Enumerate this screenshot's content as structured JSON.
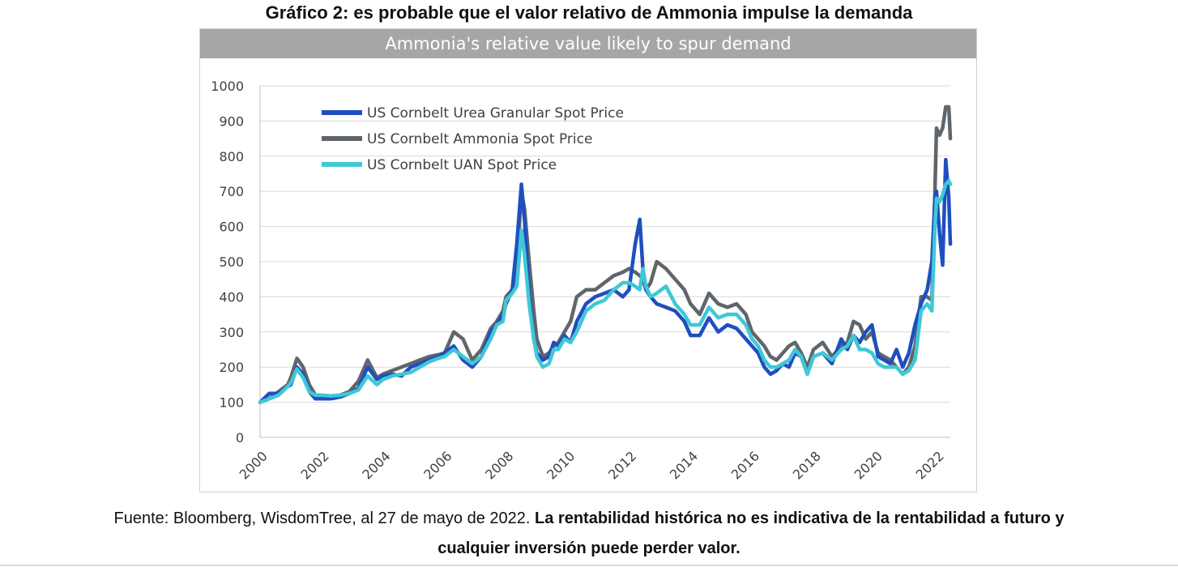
{
  "page_title": "Gráfico 2: es probable que el valor relativo de Ammonia impulse la demanda",
  "caption": {
    "source": "Fuente: Bloomberg, WisdomTree, al 27 de mayo de 2022.",
    "disclaimer_line1": "La rentabilidad histórica no es indicativa de la rentabilidad a futuro y",
    "disclaimer_line2": "cualquier inversión puede perder valor."
  },
  "colors": {
    "urea": "#1f4fbf",
    "ammonia": "#5f666b",
    "uan": "#3fc8d6",
    "header_bg": "#a6a6a6",
    "grid": "#d9d9d9"
  },
  "chart_data": {
    "type": "line",
    "title": "Ammonia's relative value likely to spur demand",
    "xlabel": "",
    "ylabel": "",
    "ylim": [
      0,
      1000
    ],
    "xlim": [
      2000,
      2022.45
    ],
    "yticks": [
      0,
      100,
      200,
      300,
      400,
      500,
      600,
      700,
      800,
      900,
      1000
    ],
    "xticks": [
      "2000",
      "2002",
      "2004",
      "2006",
      "2008",
      "2010",
      "2012",
      "2014",
      "2016",
      "2018",
      "2020",
      "2022"
    ],
    "legend_position": "top-left",
    "series": [
      {
        "name": "US Cornbelt Urea Granular Spot Price",
        "color": "#1f4fbf",
        "x": [
          2000,
          2000.3,
          2000.6,
          2000.9,
          2001.0,
          2001.2,
          2001.4,
          2001.6,
          2001.8,
          2002.0,
          2002.3,
          2002.6,
          2002.9,
          2003.2,
          2003.5,
          2003.8,
          2004.0,
          2004.3,
          2004.6,
          2004.9,
          2005.2,
          2005.5,
          2005.8,
          2006.0,
          2006.3,
          2006.6,
          2006.9,
          2007.2,
          2007.5,
          2007.7,
          2007.9,
          2008.0,
          2008.2,
          2008.35,
          2008.5,
          2008.6,
          2008.75,
          2008.9,
          2009.0,
          2009.2,
          2009.4,
          2009.55,
          2009.7,
          2009.9,
          2010.1,
          2010.3,
          2010.6,
          2010.9,
          2011.2,
          2011.5,
          2011.8,
          2012.0,
          2012.2,
          2012.35,
          2012.45,
          2012.55,
          2012.7,
          2012.9,
          2013.2,
          2013.5,
          2013.8,
          2014.0,
          2014.3,
          2014.6,
          2014.9,
          2015.2,
          2015.5,
          2015.8,
          2016.0,
          2016.2,
          2016.4,
          2016.6,
          2016.8,
          2017.0,
          2017.2,
          2017.4,
          2017.6,
          2017.8,
          2018.0,
          2018.3,
          2018.6,
          2018.9,
          2019.1,
          2019.3,
          2019.5,
          2019.7,
          2019.9,
          2020.1,
          2020.3,
          2020.5,
          2020.7,
          2020.9,
          2021.1,
          2021.3,
          2021.5,
          2021.7,
          2021.85,
          2021.95,
          2022.0,
          2022.1,
          2022.2,
          2022.3,
          2022.4,
          2022.45
        ],
        "values": [
          100,
          125,
          125,
          145,
          150,
          200,
          180,
          130,
          110,
          110,
          110,
          115,
          125,
          140,
          200,
          165,
          175,
          180,
          175,
          200,
          210,
          220,
          230,
          240,
          260,
          220,
          200,
          230,
          300,
          320,
          350,
          380,
          420,
          550,
          720,
          620,
          400,
          280,
          240,
          220,
          230,
          270,
          260,
          290,
          270,
          330,
          380,
          400,
          410,
          420,
          400,
          420,
          550,
          620,
          480,
          420,
          400,
          380,
          370,
          360,
          330,
          290,
          290,
          340,
          300,
          320,
          310,
          280,
          260,
          240,
          200,
          180,
          190,
          210,
          200,
          240,
          230,
          180,
          230,
          240,
          210,
          280,
          250,
          290,
          270,
          300,
          320,
          230,
          220,
          210,
          250,
          200,
          240,
          320,
          380,
          420,
          500,
          680,
          700,
          580,
          490,
          790,
          680,
          550
        ]
      },
      {
        "name": "US Cornbelt Ammonia Spot Price",
        "color": "#5f666b",
        "x": [
          2000,
          2000.3,
          2000.6,
          2000.9,
          2001.0,
          2001.2,
          2001.4,
          2001.6,
          2001.8,
          2002.0,
          2002.3,
          2002.6,
          2002.9,
          2003.2,
          2003.5,
          2003.8,
          2004.0,
          2004.3,
          2004.6,
          2004.9,
          2005.2,
          2005.5,
          2005.8,
          2006.0,
          2006.3,
          2006.6,
          2006.9,
          2007.2,
          2007.5,
          2007.7,
          2007.9,
          2008.0,
          2008.2,
          2008.35,
          2008.5,
          2008.6,
          2008.75,
          2008.9,
          2009.0,
          2009.2,
          2009.4,
          2009.55,
          2009.7,
          2009.9,
          2010.1,
          2010.3,
          2010.6,
          2010.9,
          2011.2,
          2011.5,
          2011.8,
          2012.0,
          2012.2,
          2012.35,
          2012.45,
          2012.55,
          2012.7,
          2012.9,
          2013.2,
          2013.5,
          2013.8,
          2014.0,
          2014.3,
          2014.6,
          2014.9,
          2015.2,
          2015.5,
          2015.8,
          2016.0,
          2016.2,
          2016.4,
          2016.6,
          2016.8,
          2017.0,
          2017.2,
          2017.4,
          2017.6,
          2017.8,
          2018.0,
          2018.3,
          2018.6,
          2018.9,
          2019.1,
          2019.3,
          2019.5,
          2019.7,
          2019.9,
          2020.1,
          2020.3,
          2020.5,
          2020.7,
          2020.9,
          2021.1,
          2021.3,
          2021.5,
          2021.7,
          2021.85,
          2021.95,
          2022.0,
          2022.1,
          2022.2,
          2022.3,
          2022.4,
          2022.45
        ],
        "values": [
          100,
          110,
          130,
          150,
          170,
          225,
          200,
          150,
          120,
          115,
          115,
          120,
          130,
          160,
          220,
          170,
          180,
          190,
          200,
          210,
          220,
          230,
          235,
          240,
          300,
          280,
          220,
          250,
          310,
          330,
          360,
          400,
          420,
          480,
          700,
          650,
          500,
          360,
          280,
          230,
          240,
          260,
          270,
          300,
          330,
          400,
          420,
          420,
          440,
          460,
          470,
          480,
          470,
          460,
          450,
          420,
          440,
          500,
          480,
          450,
          420,
          380,
          350,
          410,
          380,
          370,
          380,
          350,
          300,
          280,
          260,
          230,
          220,
          240,
          260,
          270,
          240,
          200,
          250,
          270,
          230,
          260,
          270,
          330,
          320,
          280,
          300,
          240,
          230,
          220,
          200,
          180,
          200,
          260,
          400,
          400,
          390,
          700,
          880,
          860,
          880,
          940,
          940,
          850
        ]
      },
      {
        "name": "US Cornbelt UAN Spot Price",
        "color": "#3fc8d6",
        "x": [
          2000,
          2000.3,
          2000.6,
          2000.9,
          2001.0,
          2001.2,
          2001.4,
          2001.6,
          2001.8,
          2002.0,
          2002.3,
          2002.6,
          2002.9,
          2003.2,
          2003.5,
          2003.8,
          2004.0,
          2004.3,
          2004.6,
          2004.9,
          2005.2,
          2005.5,
          2005.8,
          2006.0,
          2006.3,
          2006.6,
          2006.9,
          2007.2,
          2007.5,
          2007.7,
          2007.9,
          2008.0,
          2008.2,
          2008.35,
          2008.5,
          2008.6,
          2008.75,
          2008.9,
          2009.0,
          2009.2,
          2009.4,
          2009.55,
          2009.7,
          2009.9,
          2010.1,
          2010.3,
          2010.6,
          2010.9,
          2011.2,
          2011.5,
          2011.8,
          2012.0,
          2012.2,
          2012.35,
          2012.45,
          2012.55,
          2012.7,
          2012.9,
          2013.2,
          2013.5,
          2013.8,
          2014.0,
          2014.3,
          2014.6,
          2014.9,
          2015.2,
          2015.5,
          2015.8,
          2016.0,
          2016.2,
          2016.4,
          2016.6,
          2016.8,
          2017.0,
          2017.2,
          2017.4,
          2017.6,
          2017.8,
          2018.0,
          2018.3,
          2018.6,
          2018.9,
          2019.1,
          2019.3,
          2019.5,
          2019.7,
          2019.9,
          2020.1,
          2020.3,
          2020.5,
          2020.7,
          2020.9,
          2021.1,
          2021.3,
          2021.5,
          2021.7,
          2021.85,
          2021.95,
          2022.0,
          2022.1,
          2022.2,
          2022.3,
          2022.4,
          2022.45
        ],
        "values": [
          100,
          110,
          120,
          145,
          155,
          195,
          170,
          130,
          120,
          120,
          118,
          120,
          125,
          135,
          175,
          150,
          165,
          175,
          180,
          185,
          200,
          215,
          225,
          230,
          250,
          230,
          210,
          230,
          280,
          320,
          330,
          390,
          410,
          430,
          590,
          520,
          380,
          280,
          230,
          200,
          210,
          250,
          250,
          280,
          270,
          300,
          360,
          380,
          390,
          420,
          440,
          440,
          430,
          420,
          480,
          430,
          400,
          410,
          430,
          380,
          350,
          320,
          320,
          370,
          340,
          350,
          350,
          320,
          280,
          260,
          220,
          200,
          200,
          210,
          220,
          250,
          230,
          180,
          230,
          240,
          220,
          250,
          260,
          290,
          250,
          250,
          240,
          210,
          200,
          200,
          200,
          180,
          190,
          220,
          360,
          380,
          360,
          600,
          680,
          670,
          690,
          720,
          730,
          720
        ]
      }
    ]
  }
}
